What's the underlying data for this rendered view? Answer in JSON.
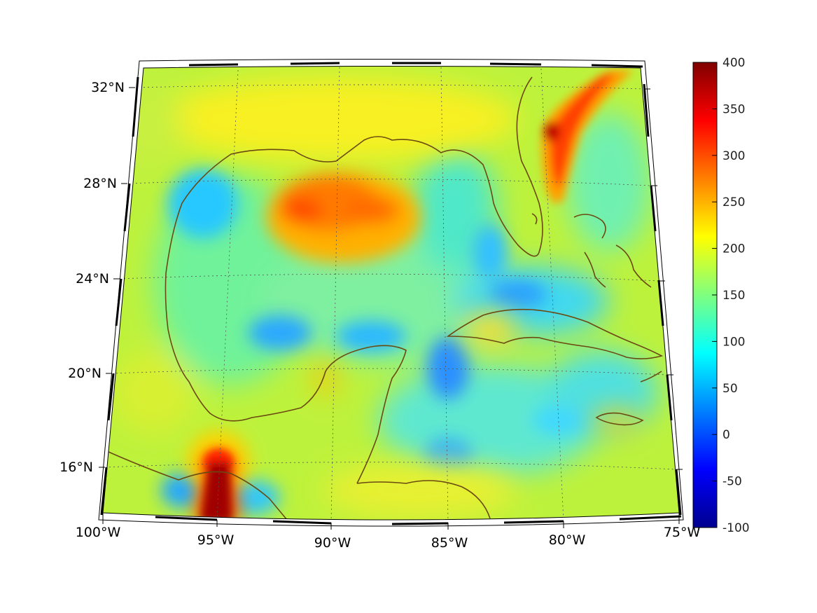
{
  "map": {
    "projection": "conic",
    "lon_ticks": [
      "100°W",
      "95°W",
      "90°W",
      "85°W",
      "80°W",
      "75°W"
    ],
    "lat_ticks": [
      "32°N",
      "28°N",
      "24°N",
      "20°N",
      "16°N"
    ],
    "grid": true,
    "grid_style": "dotted",
    "coastline_color": "#6b4a12",
    "regions": [
      "Gulf of Mexico",
      "Florida",
      "Cuba",
      "Yucatán Peninsula",
      "Jamaica",
      "Bahamas"
    ]
  },
  "colorbar": {
    "colormap": "jet",
    "min": -100,
    "max": 400,
    "ticks": [
      "400",
      "350",
      "300",
      "250",
      "200",
      "150",
      "100",
      "50",
      "0",
      "-50",
      "-100"
    ]
  },
  "features": [
    {
      "name": "north-central-gulf-maximum",
      "approx_value": 280
    },
    {
      "name": "gulf-stream-off-florida",
      "approx_value": 320
    },
    {
      "name": "isthmus-of-tehuantepec-maximum",
      "approx_value": 400
    },
    {
      "name": "yucatan-channel-minimum",
      "approx_value": 40
    },
    {
      "name": "central-gulf-minimum",
      "approx_value": 60
    }
  ]
}
